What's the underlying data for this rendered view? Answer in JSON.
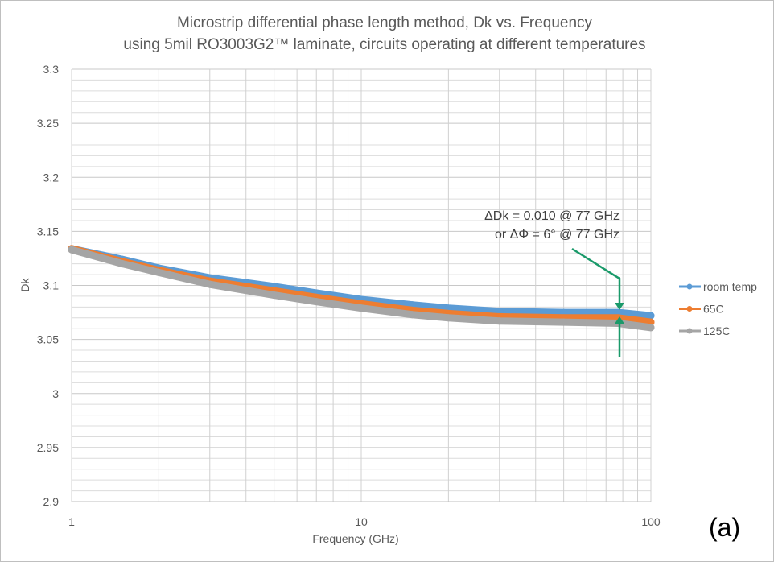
{
  "chart_data": {
    "type": "line",
    "title": "Microstrip differential phase length method, Dk vs. Frequency",
    "subtitle": "using 5mil RO3003G2™ laminate, circuits operating at different temperatures",
    "xlabel": "Frequency (GHz)",
    "ylabel": "Dk",
    "xscale": "log",
    "xlim": [
      1,
      100
    ],
    "ylim": [
      2.9,
      3.3
    ],
    "xticks": [
      "1",
      "10",
      "100"
    ],
    "yticks": [
      "2.9",
      "2.95",
      "3",
      "3.05",
      "3.1",
      "3.15",
      "3.2",
      "3.25",
      "3.3"
    ],
    "grid": true,
    "legend": "right",
    "x": [
      1,
      1.5,
      2,
      3,
      5,
      7,
      10,
      15,
      20,
      30,
      50,
      77,
      100
    ],
    "series": [
      {
        "name": "room temp",
        "color": "#5b9bd5",
        "values": [
          3.134,
          3.124,
          3.116,
          3.107,
          3.099,
          3.093,
          3.087,
          3.082,
          3.079,
          3.076,
          3.075,
          3.075,
          3.072
        ]
      },
      {
        "name": "65C",
        "color": "#ed7d31",
        "values": [
          3.134,
          3.122,
          3.114,
          3.104,
          3.095,
          3.089,
          3.083,
          3.077,
          3.074,
          3.071,
          3.07,
          3.07,
          3.066
        ]
      },
      {
        "name": "125C",
        "color": "#a5a5a5",
        "values": [
          3.133,
          3.12,
          3.112,
          3.101,
          3.091,
          3.085,
          3.079,
          3.073,
          3.07,
          3.067,
          3.066,
          3.065,
          3.061
        ]
      }
    ],
    "annotations": [
      "ΔDk = 0.010 @ 77 GHz",
      "or ΔΦ = 6° @ 77 GHz"
    ],
    "annotation_color": "#1a9a6a"
  },
  "panel_label": "(a)"
}
